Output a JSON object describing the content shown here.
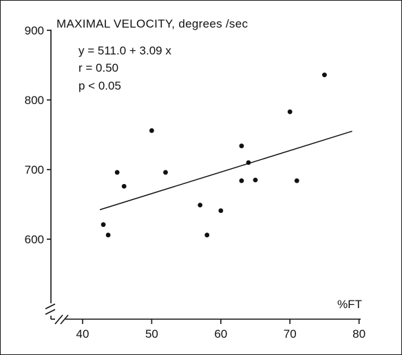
{
  "chart_data": {
    "type": "scatter",
    "title": "MAXIMAL VELOCITY, degrees /sec",
    "xlabel": "%FT",
    "ylabel": "",
    "xlim": [
      35,
      80
    ],
    "ylim": [
      500,
      900
    ],
    "x_ticks": [
      "40",
      "50",
      "60",
      "70",
      "80"
    ],
    "y_ticks": [
      "600",
      "700",
      "800",
      "900"
    ],
    "axis_break": true,
    "grid": false,
    "annotations": [
      "y = 511.0 + 3.09 x",
      "r = 0.50",
      "p < 0.05"
    ],
    "points": [
      {
        "x": 43,
        "y": 621
      },
      {
        "x": 43.7,
        "y": 606
      },
      {
        "x": 45,
        "y": 696
      },
      {
        "x": 46,
        "y": 676
      },
      {
        "x": 50,
        "y": 756
      },
      {
        "x": 52,
        "y": 696
      },
      {
        "x": 57,
        "y": 649
      },
      {
        "x": 58,
        "y": 606
      },
      {
        "x": 60,
        "y": 641
      },
      {
        "x": 63,
        "y": 734
      },
      {
        "x": 63,
        "y": 684
      },
      {
        "x": 64,
        "y": 710
      },
      {
        "x": 65,
        "y": 685
      },
      {
        "x": 70,
        "y": 783
      },
      {
        "x": 71,
        "y": 684
      },
      {
        "x": 75,
        "y": 836
      }
    ],
    "regression": {
      "intercept": 511.0,
      "slope": 3.09,
      "x_range": [
        42.5,
        79
      ]
    },
    "colors": {
      "ink": "#111111",
      "background": "#ffffff"
    }
  }
}
